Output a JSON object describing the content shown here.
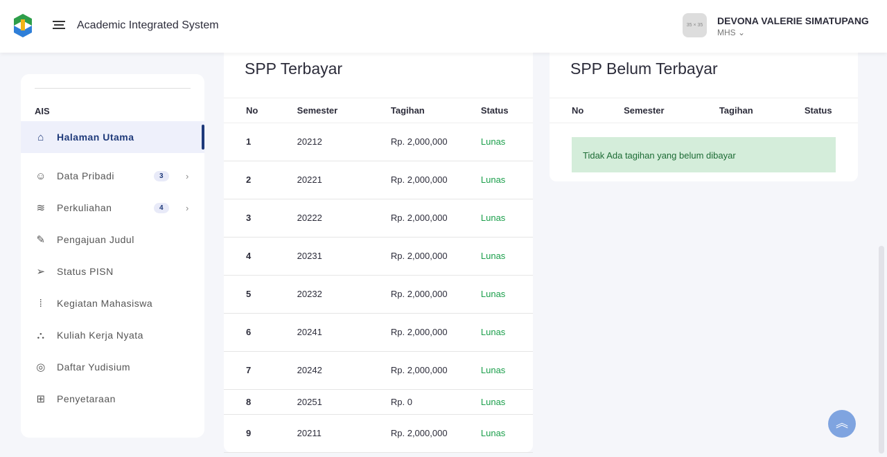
{
  "header": {
    "title": "Academic Integrated System",
    "avatar_text": "35 × 35",
    "user_name": "DEVONA VALERIE SIMATUPANG",
    "user_role": "MHS"
  },
  "sidebar": {
    "section": "AIS",
    "items": [
      {
        "label": "Halaman Utama",
        "icon": "home-icon"
      },
      {
        "label": "Data Pribadi",
        "icon": "users-icon",
        "badge": "3"
      },
      {
        "label": "Perkuliahan",
        "icon": "layers-icon",
        "badge": "4"
      },
      {
        "label": "Pengajuan Judul",
        "icon": "pencil-icon"
      },
      {
        "label": "Status PISN",
        "icon": "send-icon"
      },
      {
        "label": "Kegiatan Mahasiswa",
        "icon": "activity-icon"
      },
      {
        "label": "Kuliah Kerja Nyata",
        "icon": "network-icon"
      },
      {
        "label": "Daftar Yudisium",
        "icon": "target-icon"
      },
      {
        "label": "Penyetaraan",
        "icon": "grid-plus-icon"
      }
    ]
  },
  "paid": {
    "title": "SPP Terbayar",
    "columns": [
      "No",
      "Semester",
      "Tagihan",
      "Status"
    ],
    "rows": [
      [
        "1",
        "20212",
        "Rp. 2,000,000",
        "Lunas"
      ],
      [
        "2",
        "20221",
        "Rp. 2,000,000",
        "Lunas"
      ],
      [
        "3",
        "20222",
        "Rp. 2,000,000",
        "Lunas"
      ],
      [
        "4",
        "20231",
        "Rp. 2,000,000",
        "Lunas"
      ],
      [
        "5",
        "20232",
        "Rp. 2,000,000",
        "Lunas"
      ],
      [
        "6",
        "20241",
        "Rp. 2,000,000",
        "Lunas"
      ],
      [
        "7",
        "20242",
        "Rp. 2,000,000",
        "Lunas"
      ],
      [
        "8",
        "20251",
        "Rp. 0",
        "Lunas"
      ],
      [
        "9",
        "20211",
        "Rp. 2,000,000",
        "Lunas"
      ]
    ]
  },
  "unpaid": {
    "title": "SPP Belum Terbayar",
    "columns": [
      "No",
      "Semester",
      "Tagihan",
      "Status"
    ],
    "empty_message": "Tidak Ada tagihan yang belum dibayar"
  },
  "colors": {
    "accent": "#1f3a7a",
    "success": "#1a9e4a",
    "alert_bg": "#d4edda"
  }
}
